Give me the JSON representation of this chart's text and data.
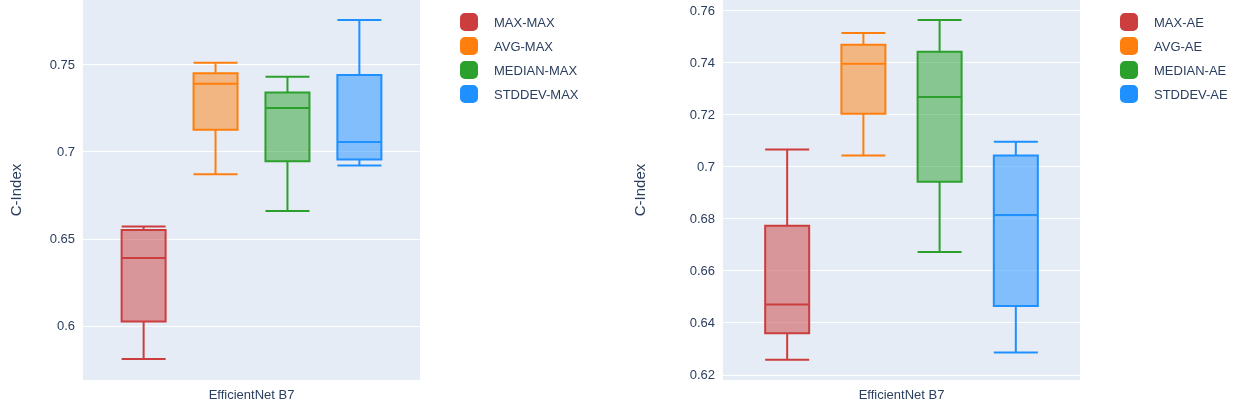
{
  "chart_data": [
    {
      "type": "box",
      "ylabel": "C-Index",
      "categories": [
        "EfficientNet B7"
      ],
      "ylim": [
        0.569,
        0.787
      ],
      "yticks": [
        0.6,
        0.65,
        0.7,
        0.75
      ],
      "grid": "y",
      "legend": "right",
      "series": [
        {
          "name": "MAX-MAX",
          "color": "#cc3d3d",
          "boxes": [
            {
              "low": 0.581,
              "q1": 0.6025,
              "median": 0.639,
              "q3": 0.655,
              "high": 0.657
            }
          ]
        },
        {
          "name": "AVG-MAX",
          "color": "#ff7f0e",
          "boxes": [
            {
              "low": 0.687,
              "q1": 0.7125,
              "median": 0.739,
              "q3": 0.745,
              "high": 0.751
            }
          ]
        },
        {
          "name": "MEDIAN-MAX",
          "color": "#2ca02c",
          "boxes": [
            {
              "low": 0.666,
              "q1": 0.6945,
              "median": 0.725,
              "q3": 0.734,
              "high": 0.743
            }
          ]
        },
        {
          "name": "STDDEV-MAX",
          "color": "#1e90ff",
          "boxes": [
            {
              "low": 0.692,
              "q1": 0.6955,
              "median": 0.7055,
              "q3": 0.744,
              "high": 0.7755
            }
          ]
        }
      ]
    },
    {
      "type": "box",
      "ylabel": "C-Index",
      "categories": [
        "EfficientNet B7"
      ],
      "ylim": [
        0.618,
        0.764
      ],
      "yticks": [
        0.62,
        0.64,
        0.66,
        0.68,
        0.7,
        0.72,
        0.74,
        0.76
      ],
      "grid": "y",
      "legend": "right",
      "series": [
        {
          "name": "MAX-AE",
          "color": "#cc3d3d",
          "boxes": [
            {
              "low": 0.6258,
              "q1": 0.636,
              "median": 0.647,
              "q3": 0.6773,
              "high": 0.7066
            }
          ]
        },
        {
          "name": "AVG-AE",
          "color": "#ff7f0e",
          "boxes": [
            {
              "low": 0.7043,
              "q1": 0.7203,
              "median": 0.7395,
              "q3": 0.7468,
              "high": 0.7513
            }
          ]
        },
        {
          "name": "MEDIAN-AE",
          "color": "#2ca02c",
          "boxes": [
            {
              "low": 0.6672,
              "q1": 0.6942,
              "median": 0.7267,
              "q3": 0.7441,
              "high": 0.7563
            }
          ]
        },
        {
          "name": "STDDEV-AE",
          "color": "#1e90ff",
          "boxes": [
            {
              "low": 0.6286,
              "q1": 0.6464,
              "median": 0.6814,
              "q3": 0.7043,
              "high": 0.7095
            }
          ]
        }
      ]
    }
  ]
}
